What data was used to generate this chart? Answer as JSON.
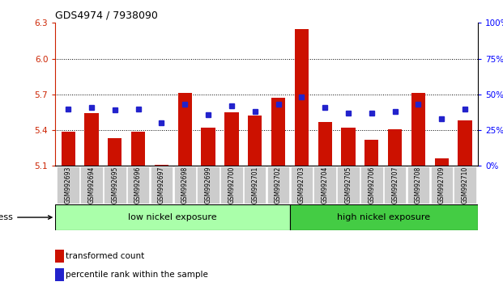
{
  "title": "GDS4974 / 7938090",
  "samples": [
    "GSM992693",
    "GSM992694",
    "GSM992695",
    "GSM992696",
    "GSM992697",
    "GSM992698",
    "GSM992699",
    "GSM992700",
    "GSM992701",
    "GSM992702",
    "GSM992703",
    "GSM992704",
    "GSM992705",
    "GSM992706",
    "GSM992707",
    "GSM992708",
    "GSM992709",
    "GSM992710"
  ],
  "red_values": [
    5.39,
    5.54,
    5.33,
    5.39,
    5.11,
    5.71,
    5.42,
    5.55,
    5.52,
    5.67,
    6.25,
    5.47,
    5.42,
    5.32,
    5.41,
    5.71,
    5.16,
    5.48
  ],
  "blue_values": [
    40,
    41,
    39,
    40,
    30,
    43,
    36,
    42,
    38,
    43,
    48,
    41,
    37,
    37,
    38,
    43,
    33,
    40
  ],
  "y_min": 5.1,
  "y_max": 6.3,
  "y_ticks": [
    5.1,
    5.4,
    5.7,
    6.0,
    6.3
  ],
  "y_right_ticks": [
    0,
    25,
    50,
    75,
    100
  ],
  "grid_lines": [
    5.4,
    5.7,
    6.0
  ],
  "bar_color": "#cc1100",
  "dot_color": "#2222cc",
  "low_nickel_count": 10,
  "high_nickel_count": 8,
  "group_label_low": "low nickel exposure",
  "group_label_high": "high nickel exposure",
  "stress_label": "stress",
  "legend_red": "transformed count",
  "legend_blue": "percentile rank within the sample",
  "low_bg": "#aaffaa",
  "high_bg": "#44cc44",
  "xlabel_bg": "#cccccc"
}
